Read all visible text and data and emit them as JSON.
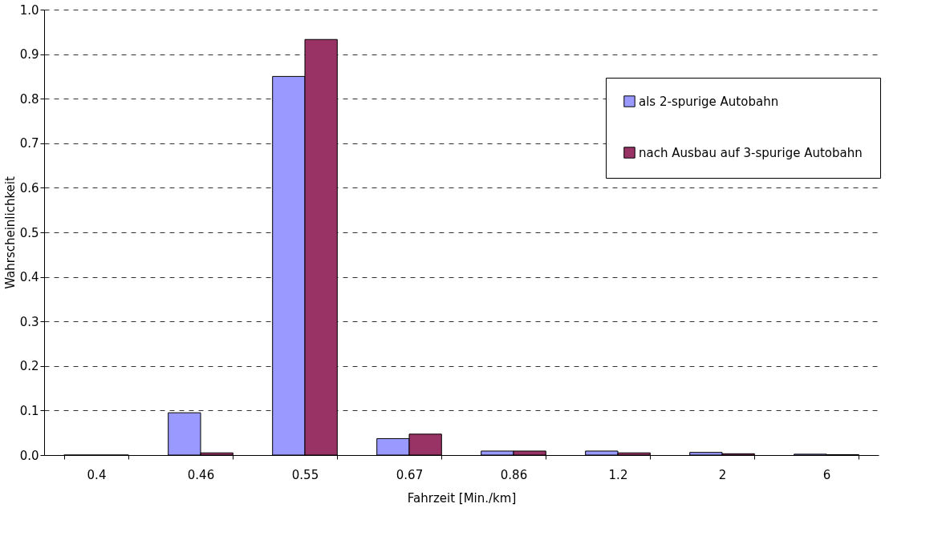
{
  "chart_data": {
    "type": "bar",
    "xlabel": "Fahrzeit [Min./km]",
    "ylabel": "Wahrscheinlichkeit",
    "categories": [
      "0.4",
      "0.46",
      "0.55",
      "0.67",
      "0.86",
      "1.2",
      "2",
      "6"
    ],
    "series": [
      {
        "name": "als 2-spurige Autobahn",
        "color": "#9999ff",
        "values": [
          0,
          0.095,
          0.85,
          0.037,
          0.009,
          0.009,
          0.006,
          0.002
        ]
      },
      {
        "name": "nach Ausbau auf 3-spurige Autobahn",
        "color": "#993366",
        "values": [
          0,
          0.005,
          0.933,
          0.047,
          0.009,
          0.005,
          0.003,
          0.001
        ]
      }
    ],
    "ylim": [
      0,
      1.0
    ],
    "yticks": [
      {
        "value": 0,
        "label": "0.0"
      },
      0.1,
      0.2,
      0.3,
      0.4,
      0.5,
      0.6,
      0.7,
      0.8,
      0.9,
      {
        "value": 1,
        "label": "1.0"
      }
    ],
    "grid": "y",
    "legend": "top right"
  }
}
